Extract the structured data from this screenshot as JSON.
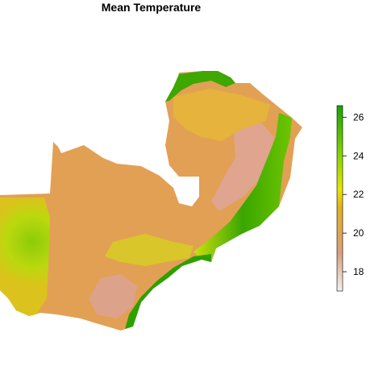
{
  "title": "Mean Temperature",
  "legend": {
    "ticks": [
      "18",
      "20",
      "22",
      "24",
      "26"
    ],
    "range": [
      17,
      26.6
    ],
    "colors": [
      "#f2f2f2",
      "#dc9f7f",
      "#e6b020",
      "#e6e600",
      "#7ed300",
      "#17a400"
    ]
  },
  "map": {
    "colors": {
      "low": "#dda597",
      "mid": "#e0a451",
      "warm": "#d8c12a",
      "hot": "#c8dd1c",
      "hottest": "#2e9d00"
    }
  }
}
